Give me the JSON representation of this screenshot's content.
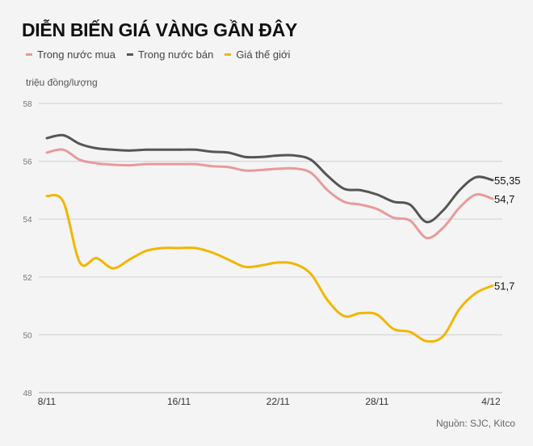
{
  "chart_data": {
    "type": "line",
    "title": "DIỄN BIẾN GIÁ VÀNG GẦN ĐÂY",
    "ylabel": "triệu đồng/lượng",
    "source": "Nguồn: SJC, Kitco",
    "x_start": "8/11",
    "x_end": "4/12",
    "x_ticks": [
      {
        "label": "8/11",
        "day": 0
      },
      {
        "label": "16/11",
        "day": 8
      },
      {
        "label": "22/11",
        "day": 14
      },
      {
        "label": "28/11",
        "day": 20
      },
      {
        "label": "4/12",
        "day": 26.9
      }
    ],
    "ylim": [
      48,
      58
    ],
    "y_ticks": [
      58,
      56,
      54,
      52,
      50,
      48
    ],
    "grid": true,
    "legend_position": "top-left",
    "series": [
      {
        "name": "Trong nước mua",
        "color": "#e89a9a",
        "end_label": "54,7",
        "values": [
          56.3,
          56.4,
          56.05,
          55.93,
          55.88,
          55.86,
          55.9,
          55.9,
          55.9,
          55.9,
          55.83,
          55.8,
          55.68,
          55.7,
          55.74,
          55.75,
          55.6,
          55.0,
          54.6,
          54.5,
          54.35,
          54.05,
          53.95,
          53.35,
          53.7,
          54.4,
          54.85,
          54.7
        ]
      },
      {
        "name": "Trong nước bán",
        "color": "#555555",
        "end_label": "55,35",
        "values": [
          56.8,
          56.9,
          56.6,
          56.45,
          56.4,
          56.37,
          56.4,
          56.4,
          56.4,
          56.4,
          56.33,
          56.3,
          56.15,
          56.15,
          56.2,
          56.2,
          56.05,
          55.5,
          55.05,
          55.0,
          54.85,
          54.6,
          54.5,
          53.9,
          54.3,
          55.0,
          55.45,
          55.35
        ]
      },
      {
        "name": "Giá thế giới",
        "color": "#f2b600",
        "end_label": "51,7",
        "values": [
          54.8,
          54.6,
          52.5,
          52.65,
          52.3,
          52.6,
          52.9,
          53.0,
          53.0,
          53.0,
          52.85,
          52.6,
          52.35,
          52.4,
          52.5,
          52.45,
          52.1,
          51.2,
          50.65,
          50.75,
          50.7,
          50.2,
          50.1,
          49.78,
          49.95,
          50.9,
          51.45,
          51.7
        ]
      }
    ]
  }
}
